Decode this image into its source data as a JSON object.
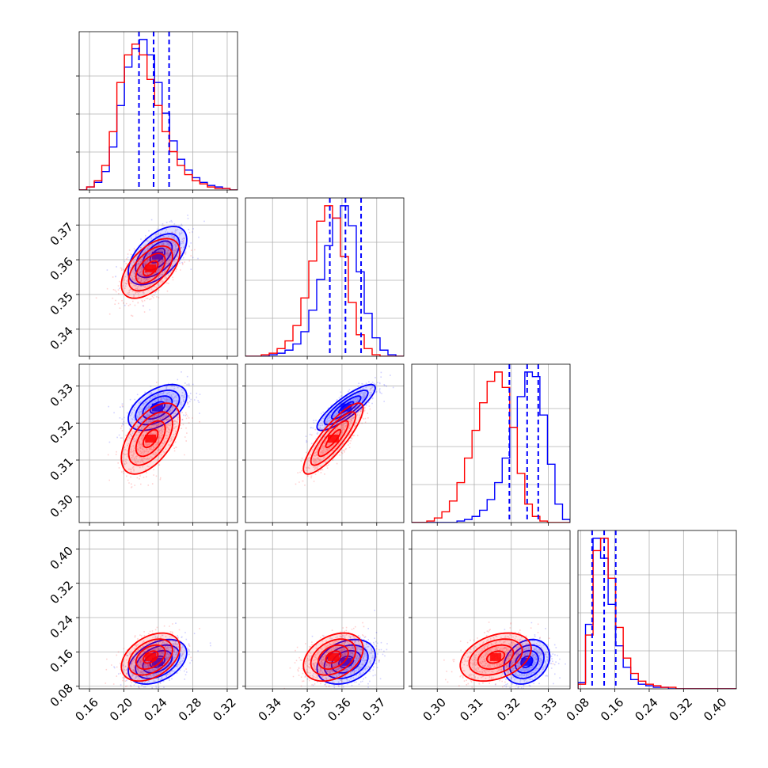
{
  "chart_data": {
    "type": "corner",
    "grid": true,
    "colors": {
      "series_a": "#0000ff",
      "series_b": "#ff0000"
    },
    "parameters": [
      {
        "ticks": [
          "0.16",
          "0.20",
          "0.24",
          "0.28",
          "0.32"
        ],
        "tick_values": [
          0.16,
          0.2,
          0.24,
          0.28,
          0.32
        ],
        "range": [
          0.148,
          0.332
        ]
      },
      {
        "ticks": [
          "0.34",
          "0.35",
          "0.36",
          "0.37"
        ],
        "tick_values": [
          0.34,
          0.35,
          0.36,
          0.37
        ],
        "range": [
          0.3322,
          0.3778
        ]
      },
      {
        "ticks": [
          "0.30",
          "0.31",
          "0.32",
          "0.33"
        ],
        "tick_values": [
          0.3,
          0.31,
          0.32,
          0.33
        ],
        "range": [
          0.2931,
          0.3359
        ]
      },
      {
        "ticks": [
          "0.08",
          "0.16",
          "0.24",
          "0.32",
          "0.40"
        ],
        "tick_values": [
          0.08,
          0.16,
          0.24,
          0.32,
          0.4
        ],
        "range": [
          0.074,
          0.443
        ]
      }
    ],
    "series": [
      {
        "color": "#0000ff",
        "means": [
          0.239,
          0.3612,
          0.3242,
          0.137
        ],
        "sigmas": [
          0.017,
          0.0042,
          0.0031,
          0.026
        ],
        "quantiles": [
          [
            0.2175,
            0.2345,
            0.2525
          ],
          [
            0.3565,
            0.361,
            0.3655
          ],
          [
            0.3195,
            0.3243,
            0.3273
          ],
          [
            0.107,
            0.135,
            0.162
          ]
        ],
        "correlations": [
          [
            0,
            1,
            0.55
          ],
          [
            0,
            2,
            0.5
          ],
          [
            0,
            3,
            0.4
          ],
          [
            1,
            2,
            0.85
          ],
          [
            1,
            3,
            0.3
          ],
          [
            2,
            3,
            0.25
          ]
        ]
      },
      {
        "color": "#ff0000",
        "means": [
          0.231,
          0.3575,
          0.3158,
          0.148
        ],
        "sigmas": [
          0.017,
          0.0043,
          0.0048,
          0.028
        ],
        "correlations": [
          [
            0,
            1,
            0.55
          ],
          [
            0,
            2,
            0.55
          ],
          [
            0,
            3,
            0.4
          ],
          [
            1,
            2,
            0.85
          ],
          [
            1,
            3,
            0.35
          ],
          [
            2,
            3,
            0.35
          ]
        ]
      }
    ],
    "hist_counts": {
      "0": {
        "series_a": [
          0,
          2,
          5,
          12,
          28,
          55,
          80,
          92,
          98,
          88,
          70,
          50,
          32,
          20,
          13,
          8,
          5,
          3,
          2,
          1,
          0
        ],
        "series_b": [
          0,
          2,
          6,
          16,
          38,
          70,
          88,
          95,
          88,
          72,
          55,
          38,
          25,
          16,
          10,
          6,
          4,
          2,
          1,
          1,
          0
        ]
      },
      "1": {
        "series_a": [
          0,
          0,
          0,
          1,
          2,
          4,
          8,
          16,
          30,
          50,
          72,
          90,
          98,
          85,
          55,
          28,
          12,
          4,
          1,
          0
        ],
        "series_b": [
          0,
          0,
          1,
          2,
          5,
          10,
          20,
          38,
          62,
          88,
          98,
          90,
          65,
          35,
          14,
          5,
          1,
          0,
          0,
          0
        ]
      },
      "2": {
        "series_a": [
          0,
          0,
          0,
          0,
          0,
          0,
          1,
          2,
          4,
          8,
          15,
          26,
          42,
          62,
          82,
          98,
          95,
          70,
          38,
          12,
          2
        ],
        "series_b": [
          0,
          0,
          1,
          3,
          7,
          14,
          26,
          42,
          60,
          78,
          92,
          98,
          88,
          62,
          32,
          12,
          4,
          1,
          0,
          0,
          0
        ]
      },
      "3": {
        "series_a": [
          4,
          42,
          98,
          85,
          55,
          28,
          14,
          6,
          3,
          2,
          1,
          1,
          0,
          0,
          0,
          0,
          0,
          0,
          0,
          0,
          0
        ],
        "series_b": [
          3,
          35,
          90,
          98,
          72,
          40,
          20,
          10,
          5,
          3,
          2,
          1,
          1,
          0,
          0,
          0,
          0,
          0,
          0,
          0,
          0
        ]
      }
    }
  }
}
